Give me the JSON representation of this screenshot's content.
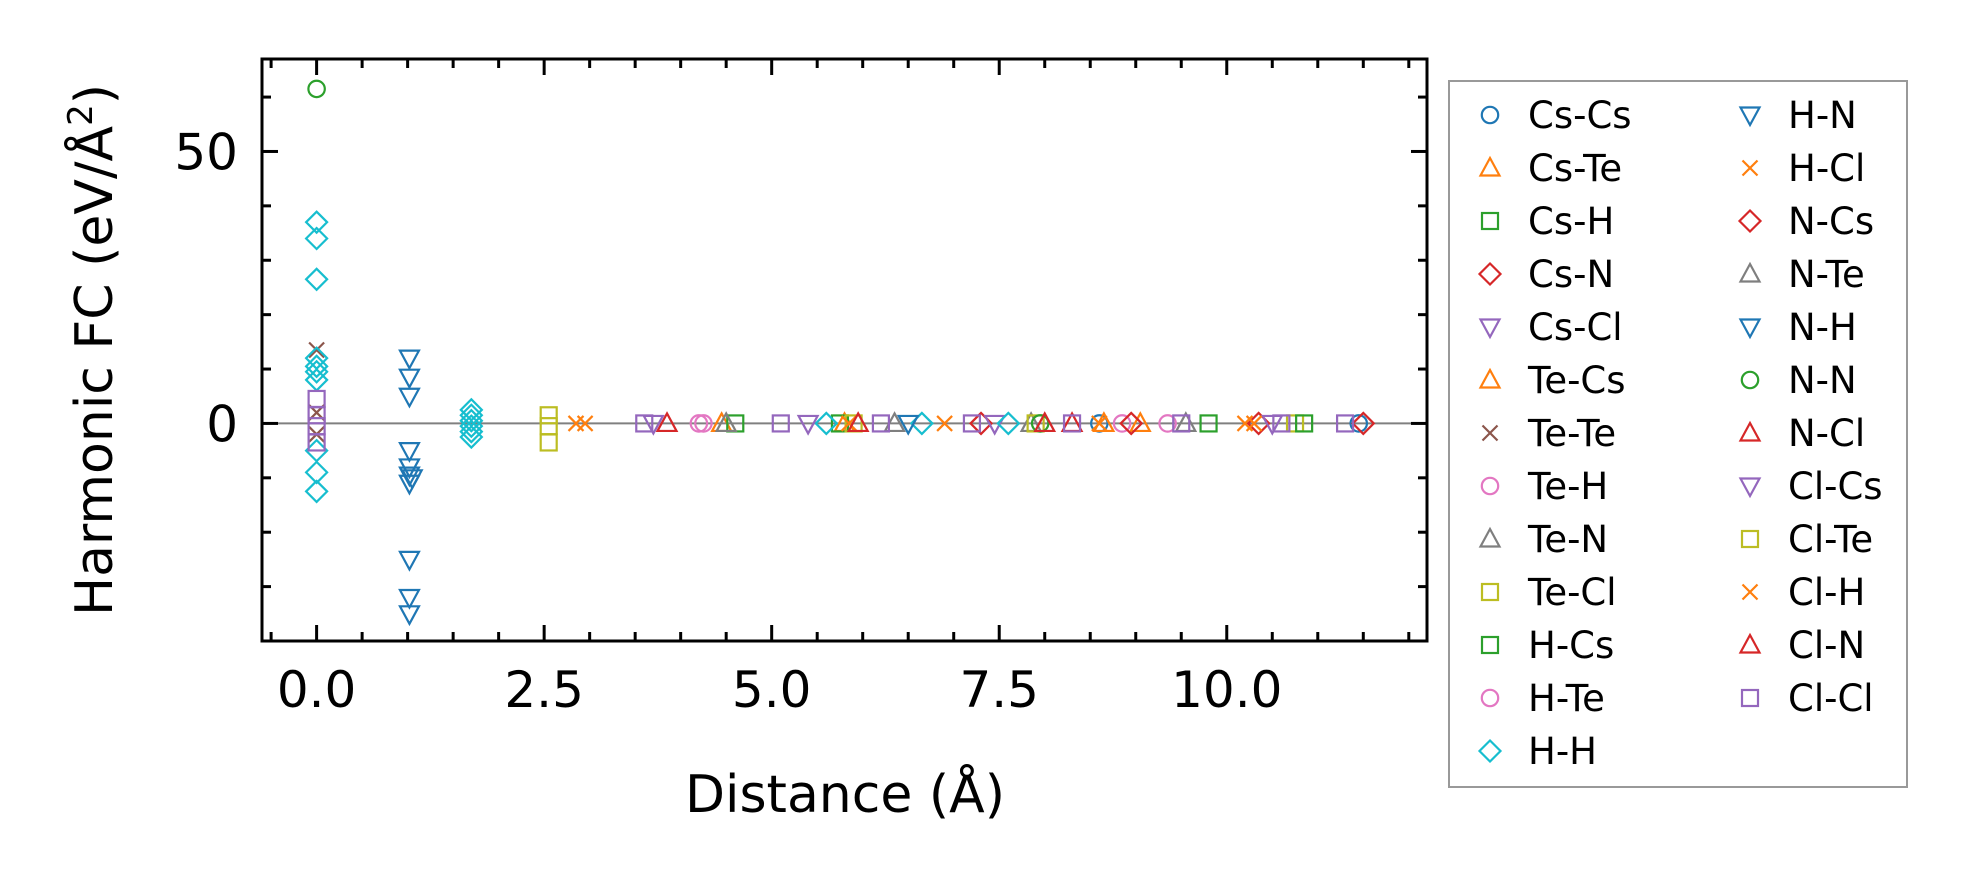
{
  "chart_data": {
    "type": "scatter",
    "title": "",
    "xlabel": "Distance (Å)",
    "ylabel_main": "Harmonic FC (eV/Å",
    "ylabel_sup": "2",
    "ylabel_end": ")",
    "xlim": [
      -0.6,
      12.2
    ],
    "ylim": [
      -40,
      67
    ],
    "xticks": [
      0.0,
      2.5,
      5.0,
      7.5,
      10.0
    ],
    "xtick_labels": [
      "0.0",
      "2.5",
      "5.0",
      "7.5",
      "10.0"
    ],
    "yticks": [
      0,
      50
    ],
    "ytick_labels": [
      "0",
      "50"
    ],
    "x_minor_step": 0.5,
    "y_minor_step": 10,
    "zero_line": true,
    "grid": false,
    "legend_position": "outside-right",
    "series": [
      {
        "name": "Cs-Cs",
        "marker": "circle",
        "color": "#1f77b4",
        "points": [
          [
            8.6,
            0
          ],
          [
            11.45,
            0
          ]
        ]
      },
      {
        "name": "Cs-Te",
        "marker": "triangle-up",
        "color": "#ff7f0e",
        "points": [
          [
            4.45,
            0
          ],
          [
            8.65,
            0
          ]
        ]
      },
      {
        "name": "Cs-H",
        "marker": "square",
        "color": "#2ca02c",
        "points": [
          [
            4.6,
            0
          ],
          [
            9.8,
            0
          ]
        ]
      },
      {
        "name": "Cs-N",
        "marker": "diamond",
        "color": "#d62728",
        "points": [
          [
            7.3,
            0
          ],
          [
            10.35,
            0
          ]
        ]
      },
      {
        "name": "Cs-Cl",
        "marker": "triangle-down",
        "color": "#9467bd",
        "points": [
          [
            3.7,
            0
          ],
          [
            7.45,
            0
          ]
        ]
      },
      {
        "name": "Te-Cs",
        "marker": "triangle-up",
        "color": "#ff7f0e",
        "points": [
          [
            5.8,
            0
          ],
          [
            9.05,
            0
          ]
        ]
      },
      {
        "name": "Te-Te",
        "marker": "x",
        "color": "#8c564b",
        "points": [
          [
            0,
            13.5
          ],
          [
            0,
            2
          ],
          [
            0,
            -2
          ]
        ]
      },
      {
        "name": "Te-H",
        "marker": "circle",
        "color": "#e377c2",
        "points": [
          [
            4.2,
            0
          ],
          [
            8.85,
            0
          ]
        ]
      },
      {
        "name": "Te-N",
        "marker": "triangle-up",
        "color": "#7f7f7f",
        "points": [
          [
            4.5,
            0
          ],
          [
            7.85,
            0
          ]
        ]
      },
      {
        "name": "Te-Cl",
        "marker": "square",
        "color": "#bcbd22",
        "points": [
          [
            7.9,
            0
          ],
          [
            10.75,
            0
          ]
        ]
      },
      {
        "name": "H-Cs",
        "marker": "square",
        "color": "#2ca02c",
        "points": [
          [
            5.75,
            0
          ],
          [
            10.85,
            0
          ]
        ]
      },
      {
        "name": "H-Te",
        "marker": "circle",
        "color": "#e377c2",
        "points": [
          [
            4.25,
            0
          ],
          [
            9.35,
            0
          ]
        ]
      },
      {
        "name": "H-H",
        "marker": "diamond",
        "color": "#17becf",
        "points": [
          [
            0,
            37
          ],
          [
            0,
            34
          ],
          [
            0,
            26.5
          ],
          [
            0,
            12
          ],
          [
            0,
            10.5
          ],
          [
            0,
            9.5
          ],
          [
            0,
            8
          ],
          [
            0,
            -5
          ],
          [
            0,
            -9
          ],
          [
            0,
            -12.5
          ],
          [
            1.7,
            2.5
          ],
          [
            1.7,
            1.5
          ],
          [
            1.7,
            0.5
          ],
          [
            1.7,
            -0.5
          ],
          [
            1.7,
            -1.5
          ],
          [
            1.7,
            -2.5
          ],
          [
            5.6,
            0
          ],
          [
            6.65,
            0
          ],
          [
            7.6,
            0
          ]
        ]
      },
      {
        "name": "H-N",
        "marker": "triangle-down",
        "color": "#1f77b4",
        "points": [
          [
            1.02,
            12
          ],
          [
            1.02,
            8.5
          ],
          [
            1.02,
            5
          ],
          [
            1.02,
            -5
          ],
          [
            1.02,
            -8
          ],
          [
            1.02,
            -9.5
          ],
          [
            1.02,
            -11
          ],
          [
            1.02,
            -25
          ],
          [
            1.02,
            -32
          ],
          [
            1.02,
            -35
          ]
        ]
      },
      {
        "name": "H-Cl",
        "marker": "x",
        "color": "#ff7f0e",
        "points": [
          [
            2.85,
            0
          ],
          [
            6.9,
            0
          ],
          [
            10.2,
            0
          ]
        ]
      },
      {
        "name": "N-Cs",
        "marker": "diamond",
        "color": "#d62728",
        "points": [
          [
            8.95,
            0
          ],
          [
            11.5,
            0
          ]
        ]
      },
      {
        "name": "N-Te",
        "marker": "triangle-up",
        "color": "#7f7f7f",
        "points": [
          [
            6.35,
            0
          ],
          [
            9.55,
            0
          ]
        ]
      },
      {
        "name": "N-H",
        "marker": "triangle-down",
        "color": "#1f77b4",
        "points": [
          [
            1.05,
            -10
          ],
          [
            6.5,
            0
          ]
        ]
      },
      {
        "name": "N-N",
        "marker": "circle",
        "color": "#2ca02c",
        "points": [
          [
            0,
            61.5
          ],
          [
            7.95,
            0
          ]
        ]
      },
      {
        "name": "N-Cl",
        "marker": "triangle-up",
        "color": "#d62728",
        "points": [
          [
            3.85,
            0
          ],
          [
            8.3,
            0
          ]
        ]
      },
      {
        "name": "Cl-Cs",
        "marker": "triangle-down",
        "color": "#9467bd",
        "points": [
          [
            5.4,
            0
          ],
          [
            10.5,
            0
          ]
        ]
      },
      {
        "name": "Cl-Te",
        "marker": "square",
        "color": "#bcbd22",
        "points": [
          [
            2.55,
            1.5
          ],
          [
            2.55,
            -0.5
          ],
          [
            2.55,
            -3.5
          ],
          [
            5.9,
            0
          ]
        ]
      },
      {
        "name": "Cl-H",
        "marker": "x",
        "color": "#ff7f0e",
        "points": [
          [
            2.95,
            0
          ],
          [
            5.85,
            0
          ],
          [
            8.6,
            0
          ],
          [
            10.3,
            0
          ]
        ]
      },
      {
        "name": "Cl-N",
        "marker": "triangle-up",
        "color": "#d62728",
        "points": [
          [
            5.95,
            0
          ],
          [
            8.0,
            0
          ]
        ]
      },
      {
        "name": "Cl-Cl",
        "marker": "square",
        "color": "#9467bd",
        "points": [
          [
            0,
            4.5
          ],
          [
            0,
            1.5
          ],
          [
            0,
            -0.5
          ],
          [
            0,
            -3.5
          ],
          [
            3.6,
            0
          ],
          [
            5.1,
            0
          ],
          [
            6.2,
            0
          ],
          [
            7.2,
            0
          ],
          [
            8.3,
            0
          ],
          [
            9.5,
            0
          ],
          [
            10.6,
            0
          ],
          [
            11.3,
            0
          ]
        ]
      }
    ]
  }
}
